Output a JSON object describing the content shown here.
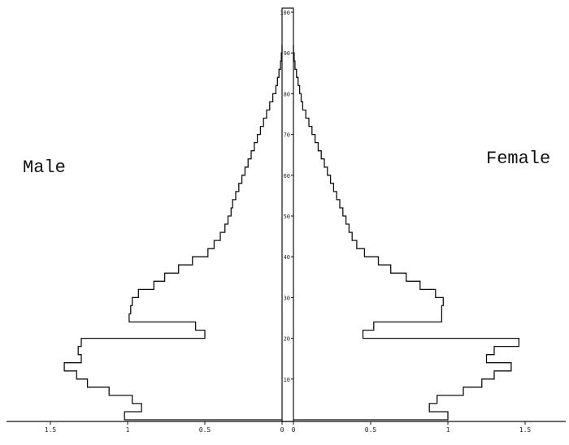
{
  "labels": {
    "male": "Male",
    "female": "Female"
  },
  "chart_data": {
    "type": "bar",
    "orientation": "horizontal-population-pyramid",
    "title": "",
    "xlabel": "",
    "ylabel": "",
    "age_ticks": [
      "10",
      "20",
      "30",
      "40",
      "50",
      "60",
      "70",
      "80",
      "90",
      "100"
    ],
    "x_ticks": {
      "male": [
        "1.5",
        "1",
        "0.5",
        "0"
      ],
      "female": [
        "0",
        "0.5",
        "1",
        "1.5"
      ]
    },
    "ylim": [
      0,
      100
    ],
    "xlim": [
      0,
      1.75
    ],
    "bin_width_years": 2,
    "series": [
      {
        "name": "Male",
        "ages": [
          0,
          2,
          4,
          6,
          8,
          10,
          12,
          14,
          16,
          18,
          20,
          22,
          24,
          26,
          28,
          30,
          32,
          34,
          36,
          38,
          40,
          42,
          44,
          46,
          48,
          50,
          52,
          54,
          56,
          58,
          60,
          62,
          64,
          66,
          68,
          70,
          72,
          74,
          76,
          78,
          80,
          82,
          84,
          86,
          88,
          90
        ],
        "values": [
          1.02,
          0.91,
          0.97,
          1.12,
          1.26,
          1.33,
          1.41,
          1.3,
          1.32,
          1.3,
          0.5,
          0.56,
          0.99,
          0.98,
          0.97,
          0.93,
          0.83,
          0.76,
          0.67,
          0.58,
          0.48,
          0.44,
          0.4,
          0.37,
          0.35,
          0.33,
          0.32,
          0.3,
          0.28,
          0.26,
          0.24,
          0.22,
          0.2,
          0.18,
          0.16,
          0.14,
          0.12,
          0.1,
          0.08,
          0.06,
          0.04,
          0.03,
          0.02,
          0.01,
          0.005,
          0.0
        ]
      },
      {
        "name": "Female",
        "ages": [
          0,
          2,
          4,
          6,
          8,
          10,
          12,
          14,
          16,
          18,
          20,
          22,
          24,
          26,
          28,
          30,
          32,
          34,
          36,
          38,
          40,
          42,
          44,
          46,
          48,
          50,
          52,
          54,
          56,
          58,
          60,
          62,
          64,
          66,
          68,
          70,
          72,
          74,
          76,
          78,
          80,
          82,
          84,
          86,
          88,
          90
        ],
        "values": [
          1.0,
          0.88,
          0.93,
          1.1,
          1.22,
          1.3,
          1.41,
          1.25,
          1.3,
          1.46,
          0.45,
          0.52,
          0.96,
          0.96,
          0.97,
          0.92,
          0.82,
          0.73,
          0.63,
          0.55,
          0.46,
          0.41,
          0.38,
          0.36,
          0.34,
          0.32,
          0.3,
          0.28,
          0.26,
          0.24,
          0.22,
          0.2,
          0.18,
          0.16,
          0.14,
          0.12,
          0.1,
          0.08,
          0.06,
          0.05,
          0.04,
          0.03,
          0.02,
          0.01,
          0.005,
          0.0
        ]
      }
    ]
  }
}
